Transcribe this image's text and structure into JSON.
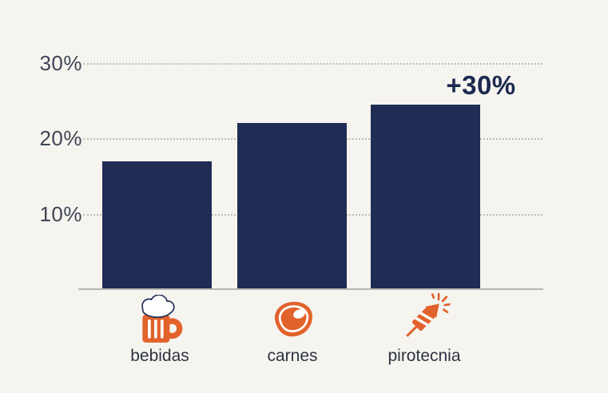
{
  "colors": {
    "background": "#f5f4ef",
    "bar_navy": "#202c53",
    "accent_orange": "#e2622b",
    "gridline_gray": "#bdbcb7",
    "axis_gray": "#b6b5b1",
    "tick_label": "#3f4556",
    "category_label": "#2e3342",
    "annotation_navy": "#1c2950",
    "icon_highlight_white": "#ffffff"
  },
  "chart_data": {
    "type": "bar",
    "title": "",
    "xlabel": "",
    "ylabel": "",
    "categories": [
      "bebidas",
      "carnes",
      "pirotecnia"
    ],
    "values": [
      17,
      22,
      24.5
    ],
    "unit": "%",
    "ylim": [
      0,
      30
    ],
    "yticks": [
      30,
      20,
      10
    ],
    "ytick_labels": [
      "30%",
      "20%",
      "10%"
    ],
    "grid": "horizontal-dotted",
    "legend_position": "none",
    "annotation": {
      "text": "+30%",
      "category": "pirotecnia"
    },
    "category_icons": [
      "beer-mug-icon",
      "steak-icon",
      "firework-rocket-icon"
    ]
  }
}
